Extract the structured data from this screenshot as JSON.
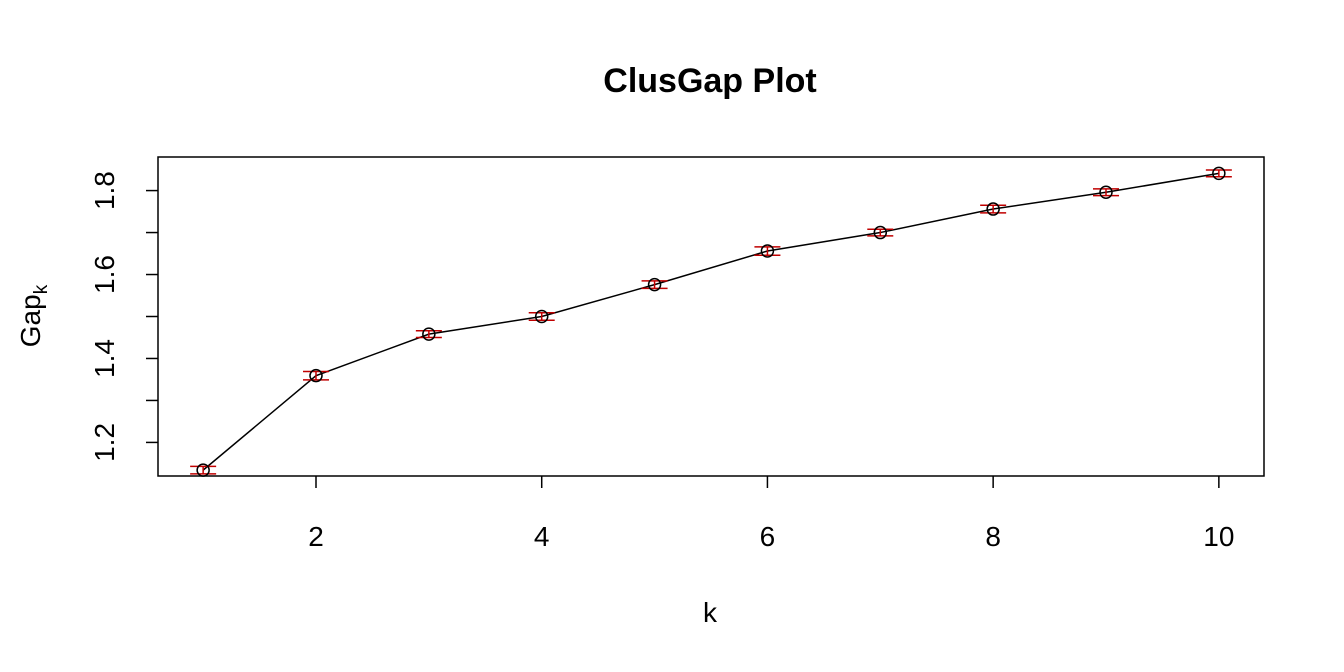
{
  "chart_data": {
    "type": "line",
    "title": "ClusGap Plot",
    "xlabel": "k",
    "ylabel_main": "Gap",
    "ylabel_sub": "k",
    "xlim": [
      0.6,
      10.4
    ],
    "ylim": [
      1.12,
      1.88
    ],
    "x_ticks": [
      2,
      4,
      6,
      8,
      10
    ],
    "y_ticks": [
      1.2,
      1.4,
      1.6,
      1.8
    ],
    "y_ticks_minor": [
      1.3,
      1.5,
      1.7
    ],
    "grid": false,
    "legend": "none",
    "series": [
      {
        "x": [
          1,
          2,
          3,
          4,
          5,
          6,
          7,
          8,
          9,
          10
        ],
        "y": [
          1.134,
          1.359,
          1.458,
          1.5,
          1.576,
          1.656,
          1.7,
          1.756,
          1.796,
          1.841
        ],
        "se": [
          0.009,
          0.01,
          0.008,
          0.009,
          0.009,
          0.01,
          0.008,
          0.009,
          0.008,
          0.008
        ]
      }
    ],
    "colors": {
      "line": "#000000",
      "points": "#000000",
      "error_bars": "#c00000"
    }
  }
}
